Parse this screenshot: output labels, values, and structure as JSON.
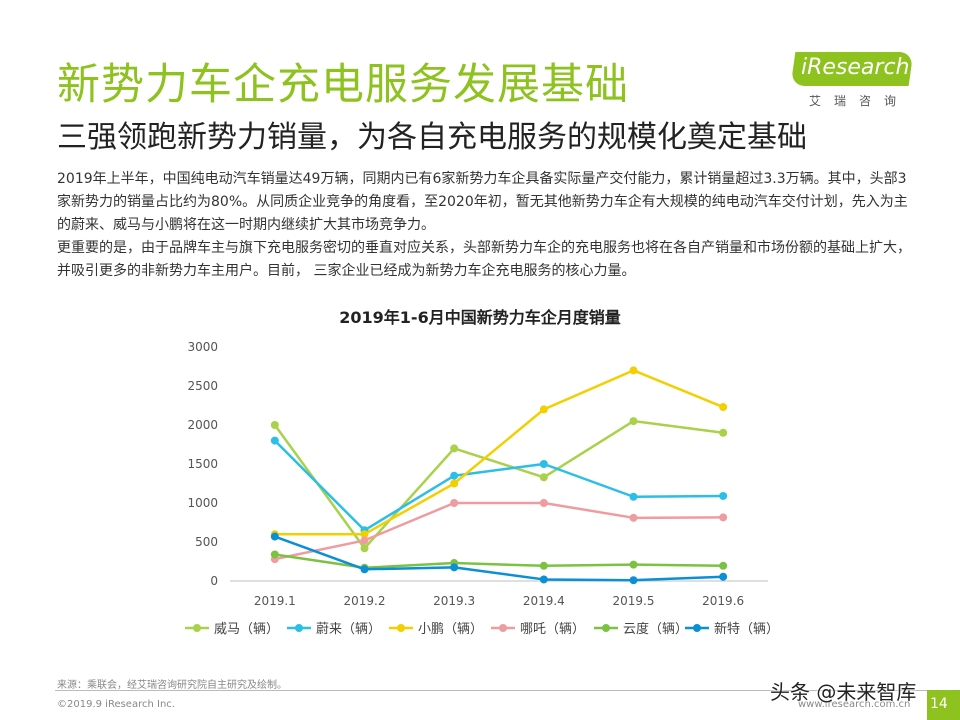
{
  "header": {
    "title": "新势力车企充电服务发展基础",
    "subtitle": "三强领跑新势力销量，为各自充电服务的规模化奠定基础"
  },
  "logo": {
    "text": "iResearch",
    "sub": "艾瑞咨询"
  },
  "body": {
    "para1": "2019年上半年，中国纯电动汽车销量达49万辆，同期内已有6家新势力车企具备实际量产交付能力，累计销量超过3.3万辆。其中，头部3家新势力的销量占比约为80%。从同质企业竞争的角度看，至2020年初，暂无其他新势力车企有大规模的纯电动汽车交付计划，先入为主的蔚来、威马与小鹏将在这一时期内继续扩大其市场竞争力。",
    "para2": "更重要的是，由于品牌车主与旗下充电服务密切的垂直对应关系，头部新势力车企的充电服务也将在各自产销量和市场份额的基础上扩大，并吸引更多的非新势力车主用户。目前， 三家企业已经成为新势力车企充电服务的核心力量。"
  },
  "chart_data": {
    "type": "line",
    "title": "2019年1-6月中国新势力车企月度销量",
    "xlabel": "",
    "ylabel": "",
    "categories": [
      "2019.1",
      "2019.2",
      "2019.3",
      "2019.4",
      "2019.5",
      "2019.6"
    ],
    "ylim": [
      0,
      3000
    ],
    "yticks": [
      0,
      500,
      1000,
      1500,
      2000,
      2500,
      3000
    ],
    "grid": false,
    "legend_position": "bottom",
    "series": [
      {
        "name": "威马（辆）",
        "color": "#a9d14a",
        "values": [
          2000,
          420,
          1700,
          1330,
          2050,
          1900
        ]
      },
      {
        "name": "蔚来（辆）",
        "color": "#2bbfe8",
        "values": [
          1800,
          650,
          1350,
          1500,
          1080,
          1090
        ]
      },
      {
        "name": "小鹏（辆）",
        "color": "#f2d000",
        "values": [
          600,
          600,
          1250,
          2200,
          2700,
          2230
        ]
      },
      {
        "name": "哪吒（辆）",
        "color": "#ee9c9f",
        "values": [
          280,
          520,
          1000,
          1000,
          810,
          815
        ]
      },
      {
        "name": "云度（辆）",
        "color": "#7cc242",
        "values": [
          340,
          170,
          230,
          195,
          210,
          195
        ]
      },
      {
        "name": "新特（辆）",
        "color": "#0b8fd7",
        "values": [
          570,
          150,
          175,
          20,
          10,
          55
        ]
      }
    ]
  },
  "footer": {
    "source": "来源：乘联会，经艾瑞咨询研究院自主研究及绘制。",
    "copyright": "©2019.9  iResearch Inc.",
    "website": "www.iresearch.com.cn",
    "watermark": "头条 @未来智库",
    "page": "14"
  }
}
